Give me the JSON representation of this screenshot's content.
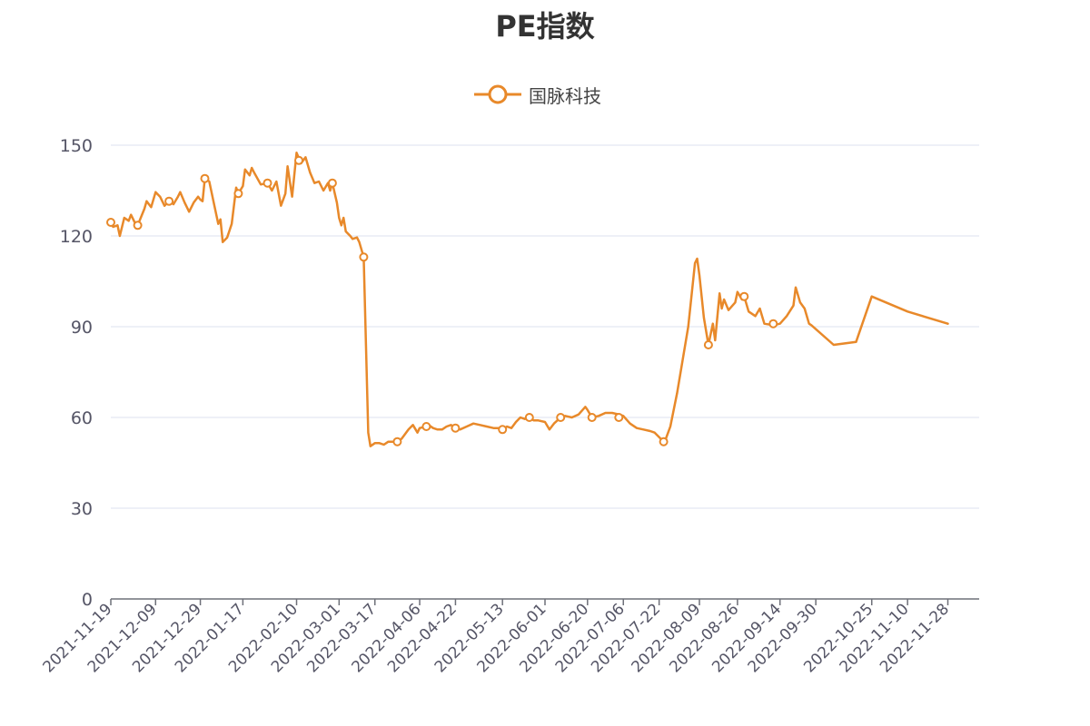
{
  "chart_data": {
    "type": "line",
    "title": "PE指数",
    "xlabel": "",
    "ylabel": "",
    "ylim": [
      0,
      150
    ],
    "yticks": [
      0,
      30,
      60,
      90,
      120,
      150
    ],
    "grid": true,
    "legend_position": "top-center",
    "x_tick_labels": [
      "2021-11-19",
      "2021-12-09",
      "2021-12-29",
      "2022-01-17",
      "2022-02-10",
      "2022-03-01",
      "2022-03-17",
      "2022-04-06",
      "2022-04-22",
      "2022-05-13",
      "2022-06-01",
      "2022-06-20",
      "2022-07-06",
      "2022-07-22",
      "2022-08-09",
      "2022-08-26",
      "2022-09-14",
      "2022-09-30",
      "2022-10-25",
      "2022-11-10",
      "2022-11-28"
    ],
    "series": [
      {
        "name": "国脉科技",
        "color": "#e8892a",
        "points": [
          [
            "2021-11-19",
            124.5
          ],
          [
            "2021-11-20",
            123
          ],
          [
            "2021-11-22",
            123.5
          ],
          [
            "2021-11-23",
            120
          ],
          [
            "2021-11-25",
            126
          ],
          [
            "2021-11-27",
            125
          ],
          [
            "2021-11-28",
            127
          ],
          [
            "2021-11-30",
            124
          ],
          [
            "2021-12-01",
            123.5
          ],
          [
            "2021-12-04",
            129
          ],
          [
            "2021-12-05",
            131.5
          ],
          [
            "2021-12-07",
            129.5
          ],
          [
            "2021-12-09",
            134.5
          ],
          [
            "2021-12-11",
            133
          ],
          [
            "2021-12-13",
            130
          ],
          [
            "2021-12-15",
            131.5
          ],
          [
            "2021-12-17",
            130.5
          ],
          [
            "2021-12-19",
            133
          ],
          [
            "2021-12-20",
            134.5
          ],
          [
            "2021-12-22",
            131
          ],
          [
            "2021-12-24",
            128
          ],
          [
            "2021-12-26",
            131
          ],
          [
            "2021-12-28",
            133
          ],
          [
            "2021-12-29",
            132
          ],
          [
            "2021-12-30",
            131.5
          ],
          [
            "2021-12-31",
            139
          ],
          [
            "2022-01-02",
            138
          ],
          [
            "2022-01-04",
            131
          ],
          [
            "2022-01-06",
            124
          ],
          [
            "2022-01-07",
            125.5
          ],
          [
            "2022-01-08",
            118
          ],
          [
            "2022-01-10",
            119.5
          ],
          [
            "2022-01-12",
            124
          ],
          [
            "2022-01-14",
            136
          ],
          [
            "2022-01-15",
            134
          ],
          [
            "2022-01-17",
            136.5
          ],
          [
            "2022-01-18",
            142
          ],
          [
            "2022-01-20",
            140
          ],
          [
            "2022-01-21",
            142.5
          ],
          [
            "2022-01-22",
            141
          ],
          [
            "2022-01-25",
            137
          ],
          [
            "2022-01-28",
            137.5
          ],
          [
            "2022-01-30",
            135
          ],
          [
            "2022-02-01",
            138
          ],
          [
            "2022-02-03",
            130
          ],
          [
            "2022-02-05",
            134
          ],
          [
            "2022-02-06",
            143
          ],
          [
            "2022-02-08",
            133
          ],
          [
            "2022-02-10",
            147.5
          ],
          [
            "2022-02-12",
            144
          ],
          [
            "2022-02-14",
            146
          ],
          [
            "2022-02-16",
            141
          ],
          [
            "2022-02-18",
            137.5
          ],
          [
            "2022-02-20",
            138
          ],
          [
            "2022-02-22",
            135
          ],
          [
            "2022-02-24",
            137.5
          ],
          [
            "2022-02-25",
            135
          ],
          [
            "2022-02-26",
            137.5
          ],
          [
            "2022-02-28",
            131
          ],
          [
            "2022-03-01",
            126
          ],
          [
            "2022-03-02",
            123.5
          ],
          [
            "2022-03-03",
            126
          ],
          [
            "2022-03-04",
            121.5
          ],
          [
            "2022-03-06",
            120
          ],
          [
            "2022-03-07",
            119
          ],
          [
            "2022-03-09",
            119.5
          ],
          [
            "2022-03-10",
            118
          ],
          [
            "2022-03-12",
            113
          ],
          [
            "2022-03-14",
            55
          ],
          [
            "2022-03-15",
            50.5
          ],
          [
            "2022-03-17",
            51.5
          ],
          [
            "2022-03-19",
            51.5
          ],
          [
            "2022-03-21",
            51
          ],
          [
            "2022-03-23",
            52
          ],
          [
            "2022-03-25",
            52
          ],
          [
            "2022-03-27",
            52
          ],
          [
            "2022-03-29",
            53
          ],
          [
            "2022-04-01",
            56
          ],
          [
            "2022-04-03",
            57.5
          ],
          [
            "2022-04-05",
            55
          ],
          [
            "2022-04-06",
            56.5
          ],
          [
            "2022-04-09",
            57
          ],
          [
            "2022-04-10",
            57.5
          ],
          [
            "2022-04-12",
            56.5
          ],
          [
            "2022-04-14",
            56
          ],
          [
            "2022-04-16",
            56
          ],
          [
            "2022-04-18",
            57
          ],
          [
            "2022-04-20",
            57.5
          ],
          [
            "2022-04-22",
            56.5
          ],
          [
            "2022-04-24",
            56
          ],
          [
            "2022-04-27",
            57
          ],
          [
            "2022-04-30",
            58
          ],
          [
            "2022-05-03",
            57.5
          ],
          [
            "2022-05-06",
            57
          ],
          [
            "2022-05-09",
            56.5
          ],
          [
            "2022-05-12",
            56.5
          ],
          [
            "2022-05-13",
            56
          ],
          [
            "2022-05-15",
            57
          ],
          [
            "2022-05-17",
            56.5
          ],
          [
            "2022-05-19",
            58.5
          ],
          [
            "2022-05-21",
            60
          ],
          [
            "2022-05-23",
            59.5
          ],
          [
            "2022-05-25",
            60
          ],
          [
            "2022-05-27",
            59
          ],
          [
            "2022-05-29",
            59
          ],
          [
            "2022-06-01",
            58.5
          ],
          [
            "2022-06-03",
            56
          ],
          [
            "2022-06-05",
            58
          ],
          [
            "2022-06-08",
            60
          ],
          [
            "2022-06-10",
            60.5
          ],
          [
            "2022-06-13",
            60
          ],
          [
            "2022-06-16",
            61
          ],
          [
            "2022-06-19",
            63.5
          ],
          [
            "2022-06-20",
            62.5
          ],
          [
            "2022-06-22",
            60
          ],
          [
            "2022-06-25",
            60.5
          ],
          [
            "2022-06-28",
            61.5
          ],
          [
            "2022-07-01",
            61.5
          ],
          [
            "2022-07-04",
            61
          ],
          [
            "2022-07-06",
            60.5
          ],
          [
            "2022-07-09",
            58
          ],
          [
            "2022-07-12",
            56.5
          ],
          [
            "2022-07-15",
            56
          ],
          [
            "2022-07-18",
            55.5
          ],
          [
            "2022-07-20",
            55
          ],
          [
            "2022-07-22",
            53.5
          ],
          [
            "2022-07-24",
            52
          ],
          [
            "2022-07-25",
            53
          ],
          [
            "2022-07-27",
            57
          ],
          [
            "2022-07-30",
            68
          ],
          [
            "2022-08-04",
            90
          ],
          [
            "2022-08-07",
            111
          ],
          [
            "2022-08-08",
            112.5
          ],
          [
            "2022-08-09",
            107
          ],
          [
            "2022-08-11",
            93
          ],
          [
            "2022-08-13",
            84
          ],
          [
            "2022-08-15",
            91
          ],
          [
            "2022-08-16",
            85.5
          ],
          [
            "2022-08-18",
            101
          ],
          [
            "2022-08-19",
            96
          ],
          [
            "2022-08-20",
            99
          ],
          [
            "2022-08-22",
            95.5
          ],
          [
            "2022-08-25",
            98
          ],
          [
            "2022-08-26",
            101.5
          ],
          [
            "2022-08-28",
            99
          ],
          [
            "2022-08-29",
            100
          ],
          [
            "2022-08-31",
            95
          ],
          [
            "2022-09-03",
            93.5
          ],
          [
            "2022-09-05",
            96
          ],
          [
            "2022-09-07",
            91
          ],
          [
            "2022-09-11",
            90.5
          ],
          [
            "2022-09-14",
            91
          ],
          [
            "2022-09-17",
            93.5
          ],
          [
            "2022-09-20",
            97
          ],
          [
            "2022-09-21",
            103
          ],
          [
            "2022-09-23",
            98
          ],
          [
            "2022-09-25",
            96
          ],
          [
            "2022-09-27",
            91
          ],
          [
            "2022-09-28",
            90.5
          ],
          [
            "2022-10-08",
            84
          ],
          [
            "2022-10-18",
            85
          ],
          [
            "2022-10-25",
            100
          ],
          [
            "2022-11-10",
            95
          ],
          [
            "2022-11-28",
            91
          ]
        ],
        "markers": [
          [
            "2021-11-19",
            124.5
          ],
          [
            "2021-12-01",
            123.5
          ],
          [
            "2021-12-15",
            131.5
          ],
          [
            "2021-12-31",
            139
          ],
          [
            "2022-01-15",
            134
          ],
          [
            "2022-01-28",
            137.5
          ],
          [
            "2022-02-11",
            145
          ],
          [
            "2022-02-26",
            137.5
          ],
          [
            "2022-03-12",
            113
          ],
          [
            "2022-03-27",
            52
          ],
          [
            "2022-04-09",
            57
          ],
          [
            "2022-04-22",
            56.5
          ],
          [
            "2022-05-13",
            56
          ],
          [
            "2022-05-25",
            60
          ],
          [
            "2022-06-08",
            60
          ],
          [
            "2022-06-22",
            60
          ],
          [
            "2022-07-04",
            60
          ],
          [
            "2022-07-24",
            52
          ],
          [
            "2022-08-13",
            84
          ],
          [
            "2022-08-29",
            100
          ],
          [
            "2022-09-11",
            91
          ]
        ]
      }
    ]
  },
  "legend": {
    "marker_icon": "circle-line-icon"
  }
}
